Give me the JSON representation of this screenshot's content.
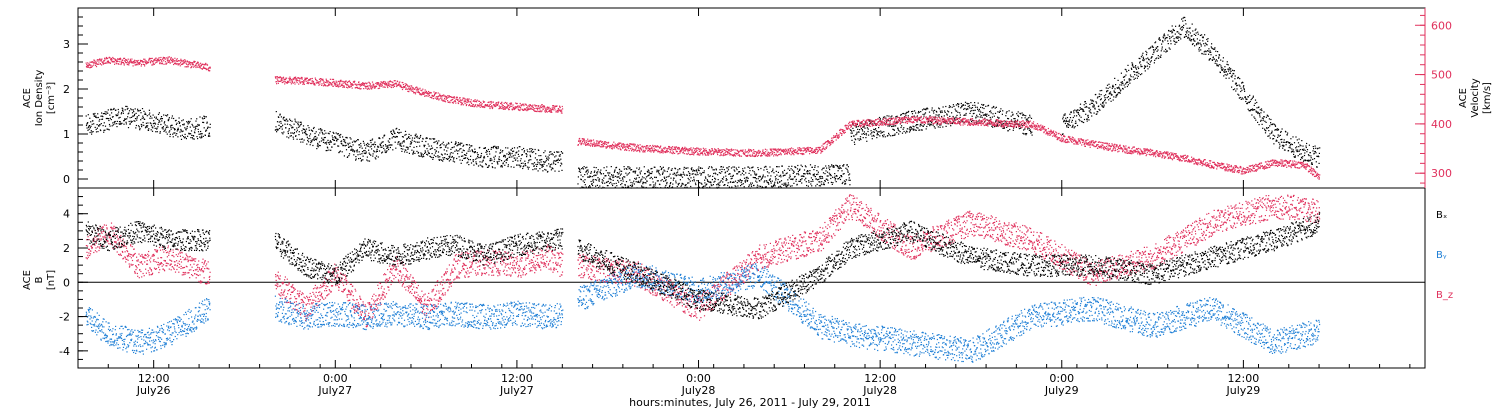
{
  "chart_data": [
    {
      "type": "scatter",
      "panel": "top",
      "left_axis": {
        "label_lines": [
          "ACE",
          "Ion Density",
          "[cm⁻³]"
        ],
        "ticks": [
          0,
          1,
          2,
          3
        ],
        "ylim": [
          -0.2,
          3.8
        ]
      },
      "right_axis": {
        "label_lines": [
          "ACE",
          "Velocity",
          "[km/s]"
        ],
        "ticks": [
          300,
          400,
          500,
          600
        ],
        "ylim": [
          270,
          635
        ],
        "color": "#e0305c"
      },
      "series": [
        {
          "axis": "left",
          "color": "#000000",
          "segments": [
            {
              "x": [
                7.5,
                10,
                12,
                14,
                15.7
              ],
              "y": [
                1.2,
                1.4,
                1.3,
                1.1,
                1.2
              ]
            },
            {
              "x": [
                20,
                22,
                24,
                26,
                28,
                30,
                32,
                34,
                36,
                38,
                39
              ],
              "y": [
                1.3,
                1.0,
                0.8,
                0.6,
                0.9,
                0.7,
                0.6,
                0.5,
                0.5,
                0.4,
                0.4
              ]
            },
            {
              "x": [
                40,
                44,
                48,
                52,
                56,
                58
              ],
              "y": [
                0.05,
                0.05,
                0.05,
                0.05,
                0.1,
                0.1
              ]
            },
            {
              "x": [
                58,
                62,
                66,
                70
              ],
              "y": [
                1.0,
                1.3,
                1.5,
                1.2
              ]
            },
            {
              "x": [
                72,
                74,
                76,
                78,
                80,
                82,
                84,
                86,
                88,
                89
              ],
              "y": [
                1.2,
                1.6,
                2.2,
                2.8,
                3.4,
                2.8,
                1.9,
                1.0,
                0.6,
                0.5
              ]
            }
          ]
        },
        {
          "axis": "right",
          "color": "#e0305c",
          "segments": [
            {
              "x": [
                7.5,
                9,
                11,
                13,
                15.7
              ],
              "y": [
                520,
                530,
                525,
                530,
                515
              ]
            },
            {
              "x": [
                20,
                22,
                24,
                26,
                28,
                30,
                32,
                34,
                36,
                38,
                39
              ],
              "y": [
                490,
                488,
                484,
                478,
                482,
                462,
                448,
                440,
                436,
                432,
                430
              ]
            },
            {
              "x": [
                40,
                44,
                48,
                52,
                56,
                58
              ],
              "y": [
                365,
                352,
                345,
                342,
                348,
                400
              ]
            },
            {
              "x": [
                58,
                62,
                66,
                70,
                72,
                74,
                76,
                78,
                80,
                82,
                84,
                86,
                88,
                89
              ],
              "y": [
                400,
                410,
                405,
                400,
                372,
                360,
                350,
                342,
                332,
                318,
                306,
                322,
                318,
                292
              ]
            }
          ]
        }
      ]
    },
    {
      "type": "scatter",
      "panel": "bottom",
      "left_axis": {
        "label_lines": [
          "ACE",
          "B",
          "[nT]"
        ],
        "ticks": [
          -4,
          -2,
          0,
          2,
          4
        ],
        "ylim": [
          -5,
          5.5
        ]
      },
      "zero_line": true,
      "series": [
        {
          "name": "Bₓ",
          "color": "#000000",
          "segments": [
            {
              "x": [
                7.5,
                9,
                11,
                13,
                15.7
              ],
              "y": [
                3.0,
                2.5,
                3.0,
                2.5,
                2.5
              ]
            },
            {
              "x": [
                20,
                22,
                24,
                26,
                28,
                30,
                32,
                34,
                36,
                38,
                39
              ],
              "y": [
                2.4,
                1.0,
                0.4,
                2.0,
                1.5,
                2.0,
                2.2,
                1.6,
                2.2,
                2.4,
                2.6
              ]
            },
            {
              "x": [
                40,
                44,
                48,
                52,
                56,
                58
              ],
              "y": [
                2.0,
                0.5,
                -1.0,
                -1.5,
                0.5,
                2.0
              ]
            },
            {
              "x": [
                58,
                62,
                66,
                70,
                74,
                78,
                82,
                86,
                89
              ],
              "y": [
                2.0,
                3.0,
                1.5,
                1.0,
                1.0,
                0.5,
                1.5,
                2.5,
                3.5
              ]
            }
          ]
        },
        {
          "name": "Bᵧ",
          "color": "#1e7fd6",
          "segments": [
            {
              "x": [
                7.5,
                9,
                11,
                13,
                15.7
              ],
              "y": [
                -2.0,
                -3.0,
                -3.5,
                -3.0,
                -1.5
              ]
            },
            {
              "x": [
                20,
                22,
                24,
                26,
                28,
                30,
                32,
                34,
                36,
                38,
                39
              ],
              "y": [
                -1.5,
                -2.0,
                -1.8,
                -2.0,
                -1.8,
                -2.0,
                -1.8,
                -2.0,
                -1.8,
                -2.0,
                -1.8
              ]
            },
            {
              "x": [
                40,
                44,
                48,
                52,
                56,
                58
              ],
              "y": [
                -1.0,
                0.5,
                -0.5,
                0.5,
                -2.5,
                -3.0
              ]
            },
            {
              "x": [
                58,
                62,
                66,
                70,
                74,
                78,
                82,
                86,
                89
              ],
              "y": [
                -3.0,
                -3.5,
                -4.0,
                -2.0,
                -1.5,
                -2.5,
                -1.5,
                -3.5,
                -2.8
              ]
            }
          ]
        },
        {
          "name": "B_z",
          "color": "#e0305c",
          "segments": [
            {
              "x": [
                7.5,
                9,
                11,
                13,
                15.7
              ],
              "y": [
                2.0,
                3.0,
                1.0,
                1.5,
                0.5
              ]
            },
            {
              "x": [
                20,
                22,
                24,
                26,
                28,
                30,
                32,
                34,
                36,
                38,
                39
              ],
              "y": [
                0.2,
                -1.5,
                0.5,
                -2.0,
                1.0,
                -1.5,
                1.0,
                1.2,
                1.0,
                1.5,
                1.0
              ]
            },
            {
              "x": [
                40,
                44,
                48,
                52,
                56,
                58
              ],
              "y": [
                1.0,
                0.5,
                -1.5,
                1.5,
                2.5,
                4.5
              ]
            },
            {
              "x": [
                58,
                62,
                66,
                70,
                74,
                78,
                82,
                86,
                89
              ],
              "y": [
                4.5,
                2.0,
                3.5,
                2.5,
                0.5,
                1.5,
                3.5,
                4.5,
                4.2
              ]
            }
          ]
        }
      ]
    }
  ],
  "time_axis": {
    "x_unit": "hours since July 26, 2011 00:00",
    "xlim": [
      7,
      96
    ],
    "ticks": [
      {
        "x": 12,
        "line1": "12:00",
        "line2": "July26"
      },
      {
        "x": 24,
        "line1": "0:00",
        "line2": "July27"
      },
      {
        "x": 36,
        "line1": "12:00",
        "line2": "July27"
      },
      {
        "x": 48,
        "line1": "0:00",
        "line2": "July28"
      },
      {
        "x": 60,
        "line1": "12:00",
        "line2": "July28"
      },
      {
        "x": 72,
        "line1": "0:00",
        "line2": "July29"
      },
      {
        "x": 84,
        "line1": "12:00",
        "line2": "July29"
      }
    ],
    "xlabel": "hours:minutes, July 26, 2011 - July 29, 2011"
  },
  "legend": [
    {
      "label": "Bₓ",
      "color": "#000000"
    },
    {
      "label": "Bᵧ",
      "color": "#1e7fd6"
    },
    {
      "label": "B_z",
      "color": "#e0305c"
    }
  ]
}
